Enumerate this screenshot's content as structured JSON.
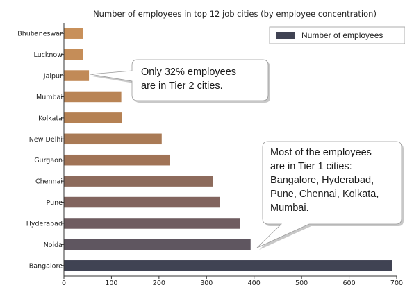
{
  "chart_data": {
    "type": "bar",
    "orientation": "horizontal",
    "title": "Number of employees in top 12 job cities (by employee concentration)",
    "categories": [
      "Bhubaneswar",
      "Lucknow",
      "Jaipur",
      "Mumbai",
      "Kolkata",
      "New Delhi",
      "Gurgaon",
      "Chennai",
      "Pune",
      "Hyderabad",
      "Noida",
      "Bangalore"
    ],
    "series": [
      {
        "name": "Number of employees",
        "values": [
          40,
          40,
          52,
          120,
          122,
          205,
          222,
          313,
          328,
          370,
          392,
          690
        ],
        "colors": [
          "#c8905a",
          "#c58d58",
          "#c18a57",
          "#b98455",
          "#b58153",
          "#a97a55",
          "#a07356",
          "#8d6b5c",
          "#82645e",
          "#6f5c60",
          "#5f5660",
          "#404353"
        ]
      }
    ],
    "xlim": [
      0,
      700
    ],
    "xticks": [
      "0",
      "100",
      "200",
      "300",
      "400",
      "500",
      "600",
      "700"
    ],
    "grid": false,
    "legend_position": "top-right",
    "legend_color": "#404353",
    "annotations": [
      {
        "lines": [
          "Only 32% employees",
          "are in Tier 2 cities."
        ]
      },
      {
        "lines": [
          "Most of the employees",
          "are in Tier 1 cities:",
          "Bangalore, Hyderabad,",
          "Pune, Chennai, Kolkata,",
          "Mumbai."
        ]
      }
    ]
  }
}
